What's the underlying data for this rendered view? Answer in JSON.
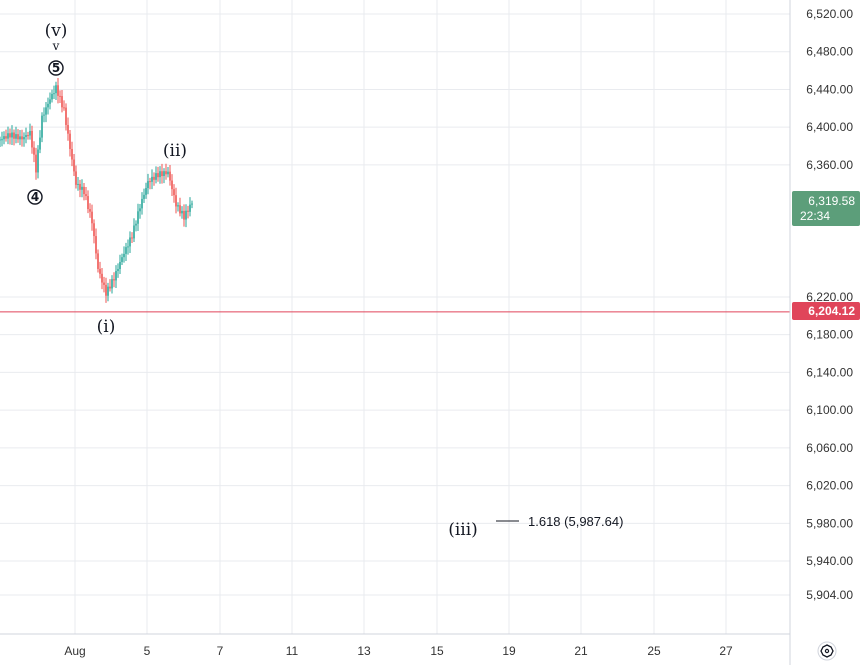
{
  "chart_data": {
    "type": "candlestick",
    "y_ticks": [
      "6,520.00",
      "6,480.00",
      "6,440.00",
      "6,400.00",
      "6,360.00",
      "6,220.00",
      "6,180.00",
      "6,140.00",
      "6,100.00",
      "6,060.00",
      "6,020.00",
      "5,980.00",
      "5,940.00",
      "5,904.00"
    ],
    "y_tick_values": [
      6520,
      6480,
      6440,
      6400,
      6360,
      6220,
      6180,
      6140,
      6100,
      6060,
      6020,
      5980,
      5940,
      5904
    ],
    "ylim": [
      5880,
      6540
    ],
    "x_ticks": [
      "Aug",
      "5",
      "7",
      "11",
      "13",
      "15",
      "19",
      "21",
      "25",
      "27"
    ],
    "last_price": {
      "value": 6319.58,
      "label": "6,319.58",
      "countdown": "22:34",
      "color": "#5c9e7a"
    },
    "horizontal_line": {
      "value": 6204.12,
      "label": "6,204.12",
      "color": "#e0455a"
    },
    "wave_labels": {
      "v": "(v)",
      "v_mark": "v",
      "five": "5",
      "four": "4",
      "i": "(i)",
      "ii": "(ii)",
      "iii": "(iii)"
    },
    "fib_level": {
      "ratio": "1.618",
      "text": "1.618 (5,987.64)",
      "value": 5987.64
    },
    "colors": {
      "candle_up": "#26a69a",
      "candle_down": "#ef5350",
      "grid": "#e9ebef"
    }
  },
  "toolbar": {
    "settings_icon": "gear-icon"
  }
}
